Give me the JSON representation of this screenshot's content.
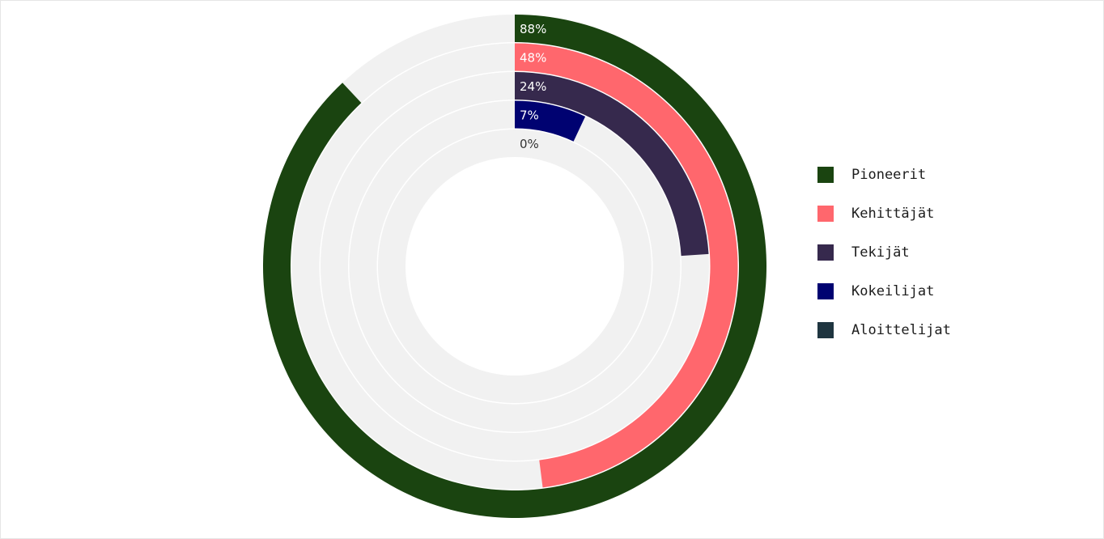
{
  "chart_data": {
    "type": "radial-bar",
    "series": [
      {
        "name": "Pioneerit",
        "value": 88,
        "label": "88%",
        "color": "#1a4410"
      },
      {
        "name": "Kehittäjät",
        "value": 48,
        "label": "48%",
        "color": "#ff676d"
      },
      {
        "name": "Tekijät",
        "value": 24,
        "label": "24%",
        "color": "#36294d"
      },
      {
        "name": "Kokeilijat",
        "value": 7,
        "label": "7%",
        "color": "#000271"
      },
      {
        "name": "Aloittelijat",
        "value": 0,
        "label": "0%",
        "color": "#1f3540"
      }
    ],
    "max": 100,
    "track_color": "#f1f1f1",
    "legend_position": "right"
  }
}
